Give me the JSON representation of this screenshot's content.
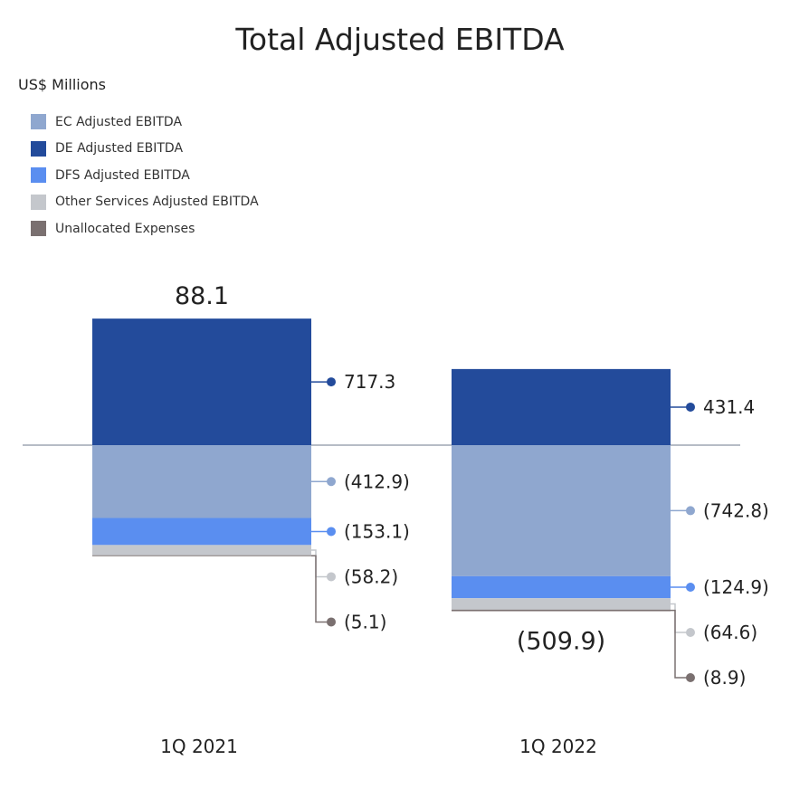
{
  "chart_data": {
    "type": "bar",
    "title": "Total Adjusted EBITDA",
    "unit_label": "US$ Millions",
    "categories": [
      "1Q 2021",
      "1Q 2022"
    ],
    "totals": [
      "88.1",
      "(509.9)"
    ],
    "series": [
      {
        "name": "EC Adjusted EBITDA",
        "color": "#8fa7cf",
        "values": [
          -412.9,
          -742.8
        ],
        "labels": [
          "(412.9)",
          "(742.8)"
        ]
      },
      {
        "name": "DE Adjusted EBITDA",
        "color": "#234b9b",
        "values": [
          717.3,
          431.4
        ],
        "labels": [
          "717.3",
          "431.4"
        ]
      },
      {
        "name": "DFS Adjusted EBITDA",
        "color": "#5a8ef0",
        "values": [
          -153.1,
          -124.9
        ],
        "labels": [
          "(153.1)",
          "(124.9)"
        ]
      },
      {
        "name": "Other Services Adjusted EBITDA",
        "color": "#c4c7cc",
        "values": [
          -58.2,
          -64.6
        ],
        "labels": [
          "(58.2)",
          "(64.6)"
        ]
      },
      {
        "name": "Unallocated Expenses",
        "color": "#7a7070",
        "values": [
          -5.1,
          -8.9
        ],
        "labels": [
          "(5.1)",
          "(8.9)"
        ]
      }
    ],
    "legend_position": "top-left",
    "grid": false
  }
}
